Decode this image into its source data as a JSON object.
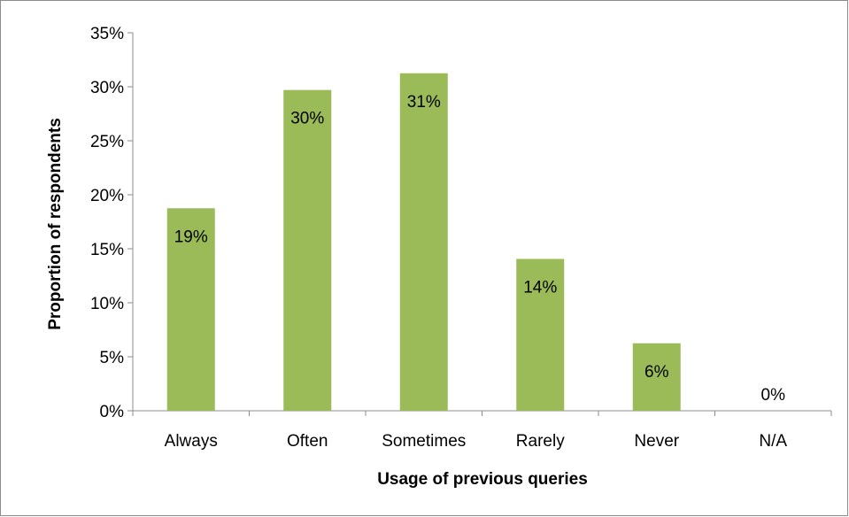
{
  "chart_data": {
    "type": "bar",
    "categories": [
      "Always",
      "Often",
      "Sometimes",
      "Rarely",
      "Never",
      "N/A"
    ],
    "values": [
      18.75,
      29.7,
      31.25,
      14.06,
      6.25,
      0
    ],
    "data_labels": [
      "19%",
      "30%",
      "31%",
      "14%",
      "6%",
      "0%"
    ],
    "title": "",
    "xlabel": "Usage of previous queries",
    "ylabel": "Proportion of respondents",
    "ylim": [
      0,
      35
    ],
    "yticks": [
      0,
      5,
      10,
      15,
      20,
      25,
      30,
      35
    ],
    "ytick_labels": [
      "0%",
      "5%",
      "10%",
      "15%",
      "20%",
      "25%",
      "30%",
      "35%"
    ],
    "grid": false,
    "legend": "none",
    "bar_color": "#9bbb59"
  }
}
